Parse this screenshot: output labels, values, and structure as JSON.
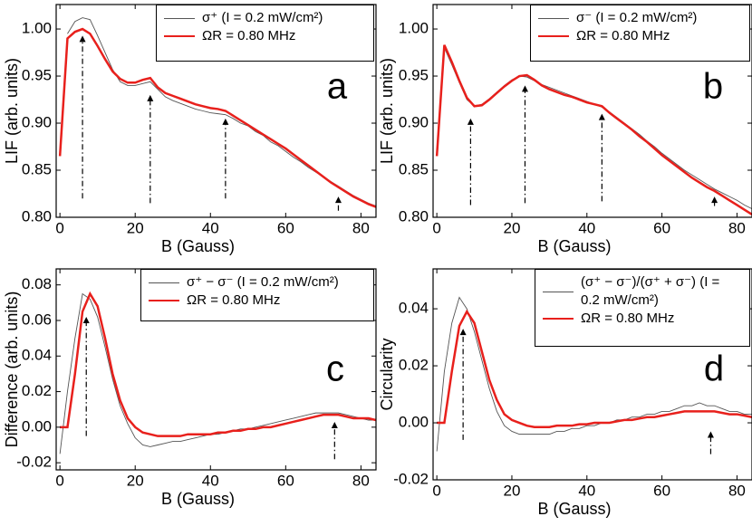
{
  "chart_data": [
    {
      "type": "line",
      "annotation": "a",
      "x_label": "B (Gauss)",
      "y_label": "LIF (arb. units)",
      "xlim": [
        -1,
        84
      ],
      "ylim": [
        0.8,
        1.026
      ],
      "xticks": [
        0,
        20,
        40,
        60,
        80
      ],
      "yticks": [
        {
          "value": 0.8,
          "label": "0.80"
        },
        {
          "value": 0.85,
          "label": "0.85"
        },
        {
          "value": 0.9,
          "label": "0.90"
        },
        {
          "value": 0.95,
          "label": "0.95"
        },
        {
          "value": 1.0,
          "label": "1.00"
        }
      ],
      "x": [
        0,
        2,
        4,
        6,
        8,
        10,
        12,
        14,
        16,
        18,
        20,
        22,
        24,
        26,
        28,
        30,
        32,
        34,
        36,
        38,
        40,
        42,
        44,
        46,
        48,
        50,
        52,
        54,
        56,
        58,
        60,
        62,
        64,
        66,
        68,
        70,
        72,
        74,
        76,
        78,
        80,
        82,
        84
      ],
      "series": [
        {
          "name": "σ⁺ (I = 0.2 mW/cm²)",
          "color": "#555555",
          "values": [
            null,
            0.995,
            1.008,
            1.012,
            1.01,
            0.993,
            0.975,
            0.957,
            0.944,
            0.94,
            0.94,
            0.942,
            0.944,
            0.936,
            0.928,
            0.924,
            0.921,
            0.918,
            0.915,
            0.913,
            0.911,
            0.91,
            0.909,
            0.905,
            0.9,
            0.897,
            0.891,
            0.887,
            0.88,
            0.876,
            0.87,
            0.864,
            0.859,
            0.853,
            0.848,
            0.843,
            0.838,
            0.833,
            0.828,
            0.823,
            0.819,
            0.815,
            0.812
          ]
        },
        {
          "name": "ΩR = 0.80 MHz",
          "color": "#e8201c",
          "values": [
            0.865,
            0.99,
            0.997,
            1.0,
            0.995,
            0.982,
            0.968,
            0.955,
            0.947,
            0.943,
            0.943,
            0.946,
            0.948,
            0.938,
            0.932,
            0.929,
            0.926,
            0.923,
            0.92,
            0.918,
            0.916,
            0.915,
            0.913,
            0.908,
            0.903,
            0.898,
            0.893,
            0.888,
            0.883,
            0.878,
            0.873,
            0.867,
            0.861,
            0.855,
            0.849,
            0.843,
            0.837,
            0.832,
            0.827,
            0.822,
            0.818,
            0.814,
            0.811
          ]
        }
      ],
      "arrows": [
        {
          "x": 6,
          "from": 0.82,
          "to": 0.993
        },
        {
          "x": 24,
          "from": 0.815,
          "to": 0.93
        },
        {
          "x": 44,
          "from": 0.82,
          "to": 0.905
        },
        {
          "x": 74,
          "from": 0.807,
          "to": 0.822
        }
      ]
    },
    {
      "type": "line",
      "annotation": "b",
      "x_label": "B (Gauss)",
      "y_label": "LIF (arb. units)",
      "xlim": [
        -1,
        84
      ],
      "ylim": [
        0.8,
        1.026
      ],
      "xticks": [
        0,
        20,
        40,
        60,
        80
      ],
      "yticks": [
        {
          "value": 0.8,
          "label": "0.80"
        },
        {
          "value": 0.85,
          "label": "0.85"
        },
        {
          "value": 0.9,
          "label": "0.90"
        },
        {
          "value": 0.95,
          "label": "0.95"
        },
        {
          "value": 1.0,
          "label": "1.00"
        }
      ],
      "x": [
        0,
        2,
        4,
        6,
        8,
        10,
        12,
        14,
        16,
        18,
        20,
        22,
        24,
        26,
        28,
        30,
        32,
        34,
        36,
        38,
        40,
        42,
        44,
        46,
        48,
        50,
        52,
        54,
        56,
        58,
        60,
        62,
        64,
        66,
        68,
        70,
        72,
        74,
        76,
        78,
        80,
        82,
        84
      ],
      "series": [
        {
          "name": "σ⁻ (I = 0.2 mW/cm²)",
          "color": "#555555",
          "values": [
            null,
            0.98,
            0.962,
            0.943,
            0.925,
            0.918,
            0.92,
            0.926,
            0.933,
            0.94,
            0.946,
            0.95,
            0.949,
            0.945,
            0.941,
            0.938,
            0.935,
            0.932,
            0.929,
            0.926,
            0.923,
            0.92,
            0.917,
            0.912,
            0.906,
            0.9,
            0.894,
            0.888,
            0.881,
            0.875,
            0.868,
            0.862,
            0.856,
            0.85,
            0.845,
            0.84,
            0.835,
            0.83,
            0.826,
            0.822,
            0.818,
            0.813,
            0.809
          ]
        },
        {
          "name": "ΩR = 0.80 MHz",
          "color": "#e8201c",
          "values": [
            0.865,
            0.983,
            0.965,
            0.945,
            0.927,
            0.918,
            0.919,
            0.925,
            0.932,
            0.939,
            0.945,
            0.95,
            0.951,
            0.946,
            0.94,
            0.936,
            0.933,
            0.93,
            0.928,
            0.925,
            0.922,
            0.92,
            0.918,
            0.911,
            0.905,
            0.899,
            0.893,
            0.886,
            0.88,
            0.873,
            0.866,
            0.86,
            0.854,
            0.848,
            0.842,
            0.837,
            0.832,
            0.828,
            0.823,
            0.818,
            0.813,
            0.808,
            0.803
          ]
        }
      ],
      "arrows": [
        {
          "x": 9,
          "from": 0.813,
          "to": 0.905
        },
        {
          "x": 23.5,
          "from": 0.815,
          "to": 0.94
        },
        {
          "x": 44,
          "from": 0.817,
          "to": 0.91
        },
        {
          "x": 74,
          "from": 0.812,
          "to": 0.822
        }
      ]
    },
    {
      "type": "line",
      "annotation": "c",
      "x_label": "B (Gauss)",
      "y_label": "Difference (arb. units)",
      "xlim": [
        -1,
        84
      ],
      "ylim": [
        -0.024,
        0.089
      ],
      "xticks": [
        0,
        20,
        40,
        60,
        80
      ],
      "yticks": [
        -0.02,
        {
          "value": 0,
          "label": "0.00"
        },
        0.02,
        0.04,
        0.06,
        0.08
      ],
      "x": [
        0,
        2,
        4,
        6,
        8,
        10,
        12,
        14,
        16,
        18,
        20,
        22,
        24,
        26,
        28,
        30,
        32,
        34,
        36,
        38,
        40,
        42,
        44,
        46,
        48,
        50,
        52,
        54,
        56,
        58,
        60,
        62,
        64,
        66,
        68,
        70,
        72,
        74,
        76,
        78,
        80,
        82,
        84
      ],
      "series": [
        {
          "name": "σ⁺ − σ⁻ (I = 0.2 mW/cm²)",
          "color": "#555555",
          "values": [
            -0.015,
            0.02,
            0.05,
            0.075,
            0.072,
            0.062,
            0.045,
            0.027,
            0.012,
            0.002,
            -0.006,
            -0.01,
            -0.011,
            -0.01,
            -0.009,
            -0.008,
            -0.008,
            -0.007,
            -0.006,
            -0.005,
            -0.004,
            -0.004,
            -0.003,
            -0.002,
            -0.001,
            -0.001,
            0.0,
            0.001,
            0.002,
            0.003,
            0.004,
            0.005,
            0.006,
            0.007,
            0.008,
            0.008,
            0.008,
            0.008,
            0.007,
            0.006,
            0.005,
            0.004,
            0.004
          ]
        },
        {
          "name": "ΩR = 0.80 MHz",
          "color": "#e8201c",
          "values": [
            0.0,
            0.0,
            0.03,
            0.065,
            0.075,
            0.068,
            0.05,
            0.03,
            0.015,
            0.005,
            0.0,
            -0.003,
            -0.004,
            -0.005,
            -0.005,
            -0.005,
            -0.005,
            -0.004,
            -0.004,
            -0.004,
            -0.004,
            -0.003,
            -0.003,
            -0.002,
            -0.002,
            -0.001,
            -0.001,
            0.0,
            0.0,
            0.001,
            0.002,
            0.003,
            0.004,
            0.005,
            0.006,
            0.007,
            0.007,
            0.007,
            0.006,
            0.005,
            0.005,
            0.005,
            0.004
          ]
        }
      ],
      "arrows": [
        {
          "x": 7,
          "from": -0.005,
          "to": 0.062
        },
        {
          "x": 73,
          "from": -0.018,
          "to": 0.003
        }
      ]
    },
    {
      "type": "line",
      "annotation": "d",
      "x_label": "B (Gauss)",
      "y_label": "Circularity",
      "xlim": [
        -1,
        84
      ],
      "ylim": [
        -0.02,
        0.054
      ],
      "xticks": [
        0,
        20,
        40,
        60,
        80
      ],
      "yticks": [
        -0.02,
        {
          "value": 0,
          "label": "0.00"
        },
        0.02,
        0.04
      ],
      "x": [
        0,
        2,
        4,
        6,
        8,
        10,
        12,
        14,
        16,
        18,
        20,
        22,
        24,
        26,
        28,
        30,
        32,
        34,
        36,
        38,
        40,
        42,
        44,
        46,
        48,
        50,
        52,
        54,
        56,
        58,
        60,
        62,
        64,
        66,
        68,
        70,
        72,
        74,
        76,
        78,
        80,
        82,
        84
      ],
      "series": [
        {
          "name": "(σ⁺ − σ⁻)/(σ⁺ + σ⁻) (I = 0.2 mW/cm²)",
          "color": "#555555",
          "values": [
            -0.01,
            0.018,
            0.035,
            0.044,
            0.04,
            0.032,
            0.022,
            0.012,
            0.004,
            -0.001,
            -0.003,
            -0.004,
            -0.004,
            -0.004,
            -0.004,
            -0.004,
            -0.003,
            -0.003,
            -0.002,
            -0.002,
            -0.001,
            -0.001,
            0.0,
            0.0,
            0.001,
            0.001,
            0.002,
            0.002,
            0.003,
            0.003,
            0.004,
            0.004,
            0.005,
            0.006,
            0.006,
            0.007,
            0.006,
            0.006,
            0.005,
            0.004,
            0.004,
            0.003,
            0.003
          ]
        },
        {
          "name": "ΩR = 0.80 MHz",
          "color": "#e8201c",
          "values": [
            0.0,
            0.0,
            0.018,
            0.034,
            0.039,
            0.035,
            0.025,
            0.015,
            0.008,
            0.003,
            0.001,
            0.0,
            -0.001,
            -0.0015,
            -0.0015,
            -0.0015,
            -0.001,
            -0.001,
            -0.001,
            -0.0005,
            -0.0005,
            0,
            0,
            0,
            0.0005,
            0.001,
            0.001,
            0.0015,
            0.002,
            0.002,
            0.0025,
            0.003,
            0.0035,
            0.004,
            0.004,
            0.004,
            0.004,
            0.004,
            0.0035,
            0.003,
            0.003,
            0.0025,
            0.002
          ]
        }
      ],
      "arrows": [
        {
          "x": 7,
          "from": -0.006,
          "to": 0.033
        },
        {
          "x": 73,
          "from": -0.011,
          "to": -0.003
        }
      ]
    }
  ]
}
